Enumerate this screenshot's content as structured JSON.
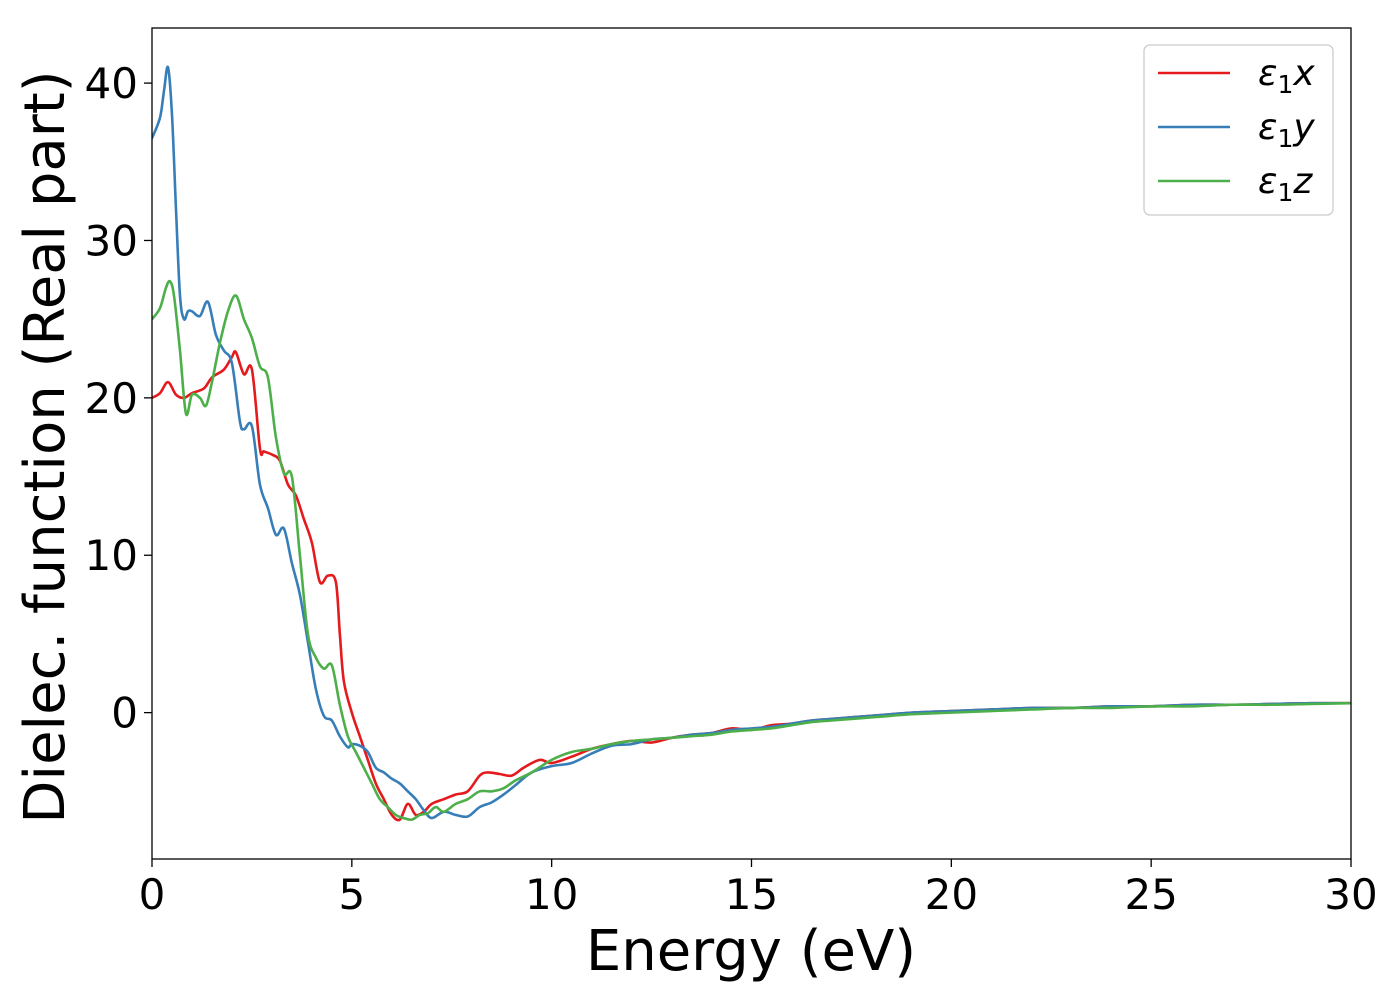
{
  "chart_data": {
    "type": "line",
    "title": "",
    "xlabel": "Energy (eV)",
    "ylabel": "Dielec. function (Real part)",
    "xlim": [
      0,
      30
    ],
    "ylim": [
      -9.3,
      43.5
    ],
    "xticks": [
      0,
      5,
      10,
      15,
      20,
      25,
      30
    ],
    "yticks": [
      0,
      10,
      20,
      30,
      40
    ],
    "grid": false,
    "legend_position": "top-right",
    "series": [
      {
        "name": "ε₁x",
        "legend_base": "ε",
        "legend_sub": "1",
        "legend_suffix": "x",
        "color": "#e41a1c",
        "x": [
          0,
          0.2,
          0.4,
          0.6,
          0.8,
          1.0,
          1.3,
          1.5,
          1.8,
          2.0,
          2.1,
          2.3,
          2.5,
          2.7,
          2.8,
          3.0,
          3.2,
          3.4,
          3.6,
          3.8,
          4.0,
          4.2,
          4.4,
          4.6,
          4.7,
          4.8,
          5.0,
          5.2,
          5.4,
          5.6,
          5.8,
          6.0,
          6.2,
          6.4,
          6.6,
          6.8,
          7.0,
          7.3,
          7.6,
          7.9,
          8.2,
          8.4,
          8.7,
          9.0,
          9.3,
          9.7,
          10.0,
          10.5,
          11.0,
          11.5,
          12.0,
          12.5,
          13.0,
          13.5,
          14.0,
          14.5,
          15.0,
          15.5,
          16.0,
          16.5,
          17.0,
          17.5,
          18.0,
          18.5,
          19.0,
          20.0,
          21.0,
          22.0,
          23.0,
          24.0,
          25.0,
          26.0,
          27.0,
          28.0,
          29.0,
          30.0
        ],
        "y": [
          20.0,
          20.3,
          21.0,
          20.2,
          20.0,
          20.3,
          20.6,
          21.3,
          21.8,
          22.6,
          22.9,
          21.5,
          21.8,
          16.8,
          16.6,
          16.4,
          16.0,
          14.5,
          13.8,
          12.3,
          10.8,
          8.3,
          8.7,
          8.3,
          5.0,
          2.0,
          0.0,
          -1.5,
          -3.0,
          -4.5,
          -5.5,
          -6.5,
          -6.8,
          -5.8,
          -6.5,
          -6.3,
          -5.8,
          -5.5,
          -5.2,
          -5.0,
          -4.0,
          -3.8,
          -3.9,
          -4.0,
          -3.5,
          -3.0,
          -3.2,
          -2.8,
          -2.3,
          -2.0,
          -1.8,
          -1.9,
          -1.6,
          -1.4,
          -1.3,
          -1.0,
          -1.1,
          -0.8,
          -0.7,
          -0.5,
          -0.4,
          -0.3,
          -0.2,
          -0.1,
          0.0,
          0.1,
          0.2,
          0.3,
          0.3,
          0.4,
          0.4,
          0.5,
          0.5,
          0.55,
          0.6,
          0.6
        ]
      },
      {
        "name": "ε₁y",
        "legend_base": "ε",
        "legend_sub": "1",
        "legend_suffix": "y",
        "color": "#377eb8",
        "x": [
          0,
          0.2,
          0.3,
          0.4,
          0.5,
          0.6,
          0.7,
          0.8,
          0.9,
          1.0,
          1.2,
          1.4,
          1.6,
          1.8,
          2.0,
          2.2,
          2.3,
          2.5,
          2.7,
          2.9,
          3.1,
          3.3,
          3.5,
          3.7,
          3.9,
          4.1,
          4.3,
          4.5,
          4.7,
          4.9,
          5.0,
          5.2,
          5.4,
          5.6,
          5.8,
          6.0,
          6.2,
          6.4,
          6.6,
          6.8,
          7.0,
          7.3,
          7.6,
          7.9,
          8.2,
          8.5,
          8.8,
          9.1,
          9.5,
          10.0,
          10.5,
          11.0,
          11.5,
          12.0,
          12.5,
          13.0,
          13.5,
          14.0,
          14.5,
          15.0,
          15.5,
          16.0,
          16.5,
          17.0,
          17.5,
          18.0,
          18.5,
          19.0,
          20.0,
          21.0,
          22.0,
          23.0,
          24.0,
          25.0,
          26.0,
          27.0,
          28.0,
          29.0,
          30.0
        ],
        "y": [
          36.5,
          37.8,
          39.5,
          41.0,
          38.0,
          32.0,
          26.5,
          25.0,
          25.5,
          25.5,
          25.2,
          26.1,
          24.0,
          23.0,
          22.2,
          18.5,
          18.0,
          18.2,
          14.5,
          13.0,
          11.3,
          11.7,
          9.5,
          7.5,
          4.5,
          1.5,
          -0.2,
          -0.5,
          -1.5,
          -2.2,
          -2.0,
          -2.1,
          -2.5,
          -3.5,
          -3.8,
          -4.2,
          -4.5,
          -5.0,
          -5.5,
          -6.2,
          -6.7,
          -6.3,
          -6.5,
          -6.6,
          -6.0,
          -5.7,
          -5.2,
          -4.6,
          -3.8,
          -3.4,
          -3.2,
          -2.6,
          -2.1,
          -2.0,
          -1.7,
          -1.6,
          -1.4,
          -1.3,
          -1.1,
          -1.0,
          -0.9,
          -0.7,
          -0.5,
          -0.4,
          -0.3,
          -0.2,
          -0.1,
          0.0,
          0.1,
          0.2,
          0.3,
          0.3,
          0.4,
          0.4,
          0.5,
          0.5,
          0.55,
          0.6,
          0.6
        ]
      },
      {
        "name": "ε₁z",
        "legend_base": "ε",
        "legend_sub": "1",
        "legend_suffix": "z",
        "color": "#4daf4a",
        "x": [
          0,
          0.2,
          0.35,
          0.45,
          0.55,
          0.7,
          0.85,
          1.0,
          1.2,
          1.35,
          1.5,
          1.7,
          1.9,
          2.1,
          2.3,
          2.5,
          2.7,
          2.9,
          3.1,
          3.3,
          3.5,
          3.7,
          3.9,
          4.1,
          4.3,
          4.5,
          4.7,
          4.9,
          5.1,
          5.3,
          5.5,
          5.7,
          5.9,
          6.1,
          6.3,
          6.5,
          6.7,
          6.9,
          7.1,
          7.3,
          7.6,
          7.9,
          8.2,
          8.5,
          8.8,
          9.1,
          9.5,
          10.0,
          10.5,
          11.0,
          11.5,
          12.0,
          12.5,
          13.0,
          13.5,
          14.0,
          14.5,
          15.0,
          15.5,
          16.0,
          16.5,
          17.0,
          17.5,
          18.0,
          18.5,
          19.0,
          20.0,
          21.0,
          22.0,
          23.0,
          24.0,
          25.0,
          26.0,
          27.0,
          28.0,
          29.0,
          30.0
        ],
        "y": [
          25.0,
          25.7,
          27.0,
          27.4,
          26.5,
          23.0,
          19.0,
          20.2,
          20.0,
          19.5,
          21.0,
          23.5,
          25.5,
          26.5,
          25.0,
          23.8,
          22.0,
          21.3,
          17.5,
          15.2,
          15.0,
          10.0,
          5.0,
          3.5,
          2.8,
          3.0,
          0.5,
          -1.5,
          -2.5,
          -3.5,
          -4.5,
          -5.5,
          -6.0,
          -6.5,
          -6.7,
          -6.8,
          -6.5,
          -6.4,
          -6.0,
          -6.3,
          -5.8,
          -5.5,
          -5.0,
          -5.0,
          -4.8,
          -4.3,
          -3.8,
          -3.0,
          -2.5,
          -2.3,
          -2.0,
          -1.8,
          -1.7,
          -1.6,
          -1.5,
          -1.4,
          -1.2,
          -1.1,
          -1.0,
          -0.8,
          -0.6,
          -0.5,
          -0.4,
          -0.3,
          -0.2,
          -0.1,
          0.0,
          0.1,
          0.2,
          0.3,
          0.3,
          0.4,
          0.4,
          0.5,
          0.5,
          0.55,
          0.6
        ]
      }
    ]
  }
}
